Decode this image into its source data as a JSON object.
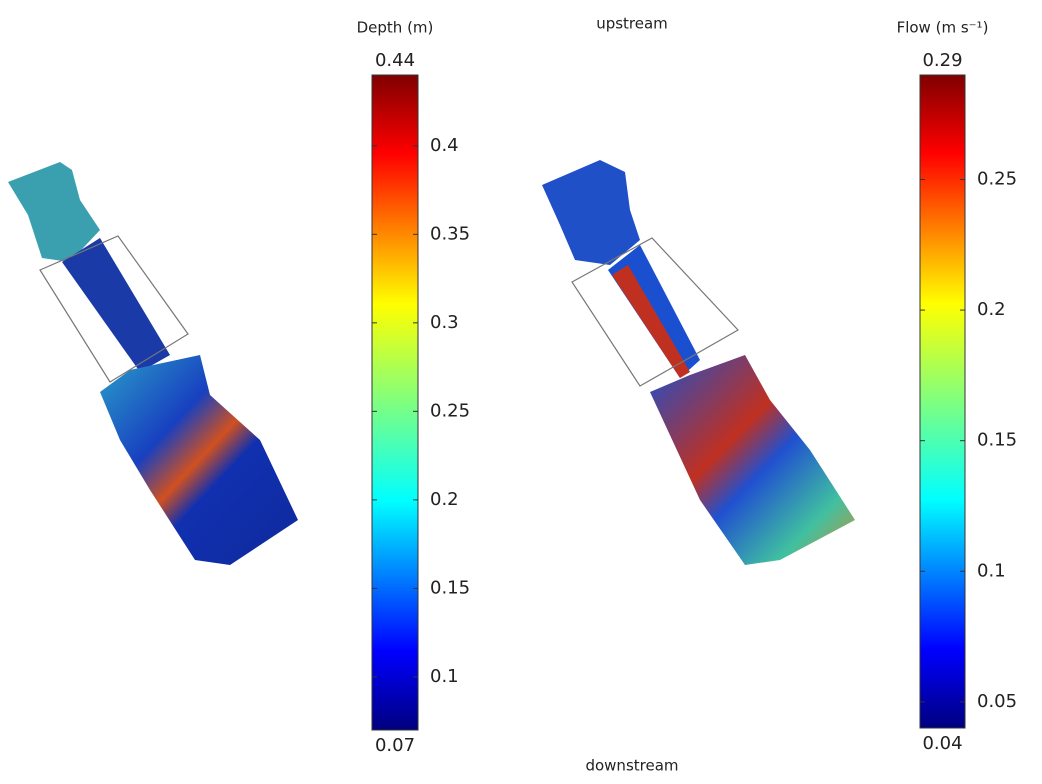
{
  "chart_data": [
    {
      "type": "colorbar",
      "title": "Depth (m)",
      "ylim": [
        0.07,
        0.44
      ],
      "yticks": [
        0.1,
        0.15,
        0.2,
        0.25,
        0.3,
        0.35,
        0.4
      ]
    },
    {
      "type": "colorbar",
      "title": "Flow (m s⁻¹)",
      "ylim": [
        0.04,
        0.29
      ],
      "yticks": [
        0.05,
        0.1,
        0.15,
        0.2,
        0.25
      ],
      "annotations": [
        "upstream",
        "downstream"
      ]
    }
  ]
}
